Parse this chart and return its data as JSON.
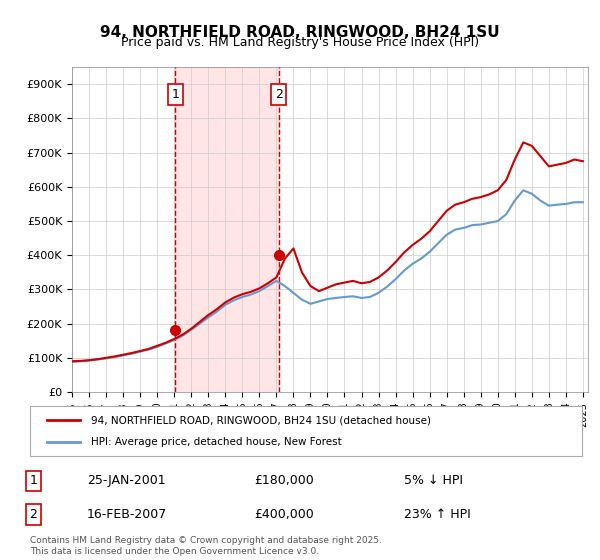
{
  "title": "94, NORTHFIELD ROAD, RINGWOOD, BH24 1SU",
  "subtitle": "Price paid vs. HM Land Registry's House Price Index (HPI)",
  "legend_label_red": "94, NORTHFIELD ROAD, RINGWOOD, BH24 1SU (detached house)",
  "legend_label_blue": "HPI: Average price, detached house, New Forest",
  "transaction_1_label": "1",
  "transaction_1_date": "25-JAN-2001",
  "transaction_1_price": "£180,000",
  "transaction_1_hpi": "5% ↓ HPI",
  "transaction_1_year": 2001.07,
  "transaction_1_value": 180000,
  "transaction_2_label": "2",
  "transaction_2_date": "16-FEB-2007",
  "transaction_2_price": "£400,000",
  "transaction_2_hpi": "23% ↑ HPI",
  "transaction_2_year": 2007.13,
  "transaction_2_value": 400000,
  "footer": "Contains HM Land Registry data © Crown copyright and database right 2025.\nThis data is licensed under the Open Government Licence v3.0.",
  "ylim": [
    0,
    950000
  ],
  "yticks": [
    0,
    100000,
    200000,
    300000,
    400000,
    500000,
    600000,
    700000,
    800000,
    900000
  ],
  "red_color": "#cc0000",
  "blue_color": "#6699cc",
  "vline_color": "#cc0000",
  "shading_color": "#ffcccc",
  "grid_color": "#cccccc",
  "background_color": "#ffffff"
}
